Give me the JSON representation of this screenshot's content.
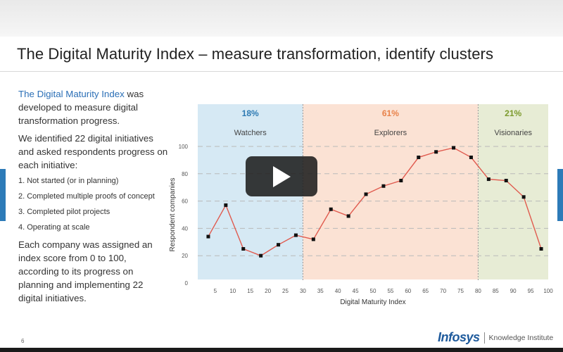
{
  "slide": {
    "title": "The Digital Maturity Index – measure transformation, identify clusters",
    "page_number": "6"
  },
  "left": {
    "intro_link": "The Digital Maturity Index",
    "intro_rest": " was developed to measure digital transformation progress.",
    "para2": "We identified 22 digital initiatives and asked respondents progress on each initiative:",
    "steps": [
      "1.  Not started (or in planning)",
      "2.  Completed multiple proofs of concept",
      "3.  Completed pilot projects",
      "4.  Operating at scale"
    ],
    "para3": "Each company was assigned an index score from 0 to 100, according to its progress on planning and implementing 22 digital initiatives."
  },
  "logo": {
    "main": "Infosys",
    "sub": "Knowledge Institute"
  },
  "colors": {
    "watchers": "#d6e9f4",
    "explorers": "#fbe2d4",
    "visionaries": "#e7ecd5",
    "line": "#e05a4e",
    "marker": "#111111",
    "watchers_text": "#2d7ab3",
    "explorers_text": "#e8824a",
    "visionaries_text": "#7c9a2d"
  },
  "chart_data": {
    "type": "line",
    "xlabel": "Digital Maturity Index",
    "ylabel": "Respondent companies",
    "xlim": [
      0,
      100
    ],
    "ylim": [
      0,
      100
    ],
    "xticks": [
      5,
      10,
      15,
      20,
      25,
      30,
      35,
      40,
      45,
      50,
      55,
      60,
      65,
      70,
      75,
      80,
      85,
      90,
      95,
      100
    ],
    "yticks": [
      0,
      20,
      40,
      60,
      80,
      100
    ],
    "grid": "dashed horizontal",
    "segments": [
      {
        "name": "Watchers",
        "share": "18%",
        "from": 0,
        "to": 30
      },
      {
        "name": "Explorers",
        "share": "61%",
        "from": 30,
        "to": 80
      },
      {
        "name": "Visionaries",
        "share": "21%",
        "from": 80,
        "to": 100
      }
    ],
    "x": [
      3,
      8,
      13,
      18,
      23,
      28,
      33,
      38,
      43,
      48,
      53,
      58,
      63,
      68,
      73,
      78,
      83,
      88,
      93,
      98
    ],
    "values": [
      34,
      57,
      25,
      20,
      28,
      35,
      32,
      54,
      49,
      65,
      71,
      75,
      92,
      96,
      99,
      92,
      76,
      75,
      63,
      25
    ]
  },
  "icons": {
    "play": "play-icon"
  }
}
